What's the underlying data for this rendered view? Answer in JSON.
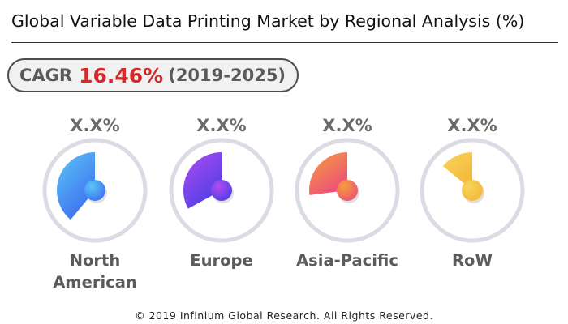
{
  "header": {
    "title": "Global Variable Data Printing Market by Regional Analysis (%)"
  },
  "cagr": {
    "label": "CAGR",
    "value": "16.46%",
    "period": "(2019-2025)",
    "value_color": "#d42a2a"
  },
  "chart_data": {
    "type": "pie",
    "title": "Global Variable Data Printing Market by Regional Analysis (%)",
    "categories": [
      "North American",
      "Europe",
      "Asia-Pacific",
      "RoW"
    ],
    "value_labels": [
      "X.X%",
      "X.X%",
      "X.X%",
      "X.X%"
    ],
    "values": [
      0.39,
      0.33,
      0.27,
      0.14
    ],
    "colors": [
      [
        "#5cc6f6",
        "#3d6ff0"
      ],
      [
        "#b04cf0",
        "#4f3fe6"
      ],
      [
        "#f6a03a",
        "#ec4f7a"
      ],
      [
        "#f8d45a",
        "#f3b83a"
      ]
    ]
  },
  "regions": [
    {
      "name_line1": "North",
      "name_line2": "American",
      "pct": "X.X%"
    },
    {
      "name_line1": "Europe",
      "name_line2": "",
      "pct": "X.X%"
    },
    {
      "name_line1": "Asia-Pacific",
      "name_line2": "",
      "pct": "X.X%"
    },
    {
      "name_line1": "RoW",
      "name_line2": "",
      "pct": "X.X%"
    }
  ],
  "footer": {
    "text": "© 2019 Infinium Global Research. All Rights Reserved."
  }
}
